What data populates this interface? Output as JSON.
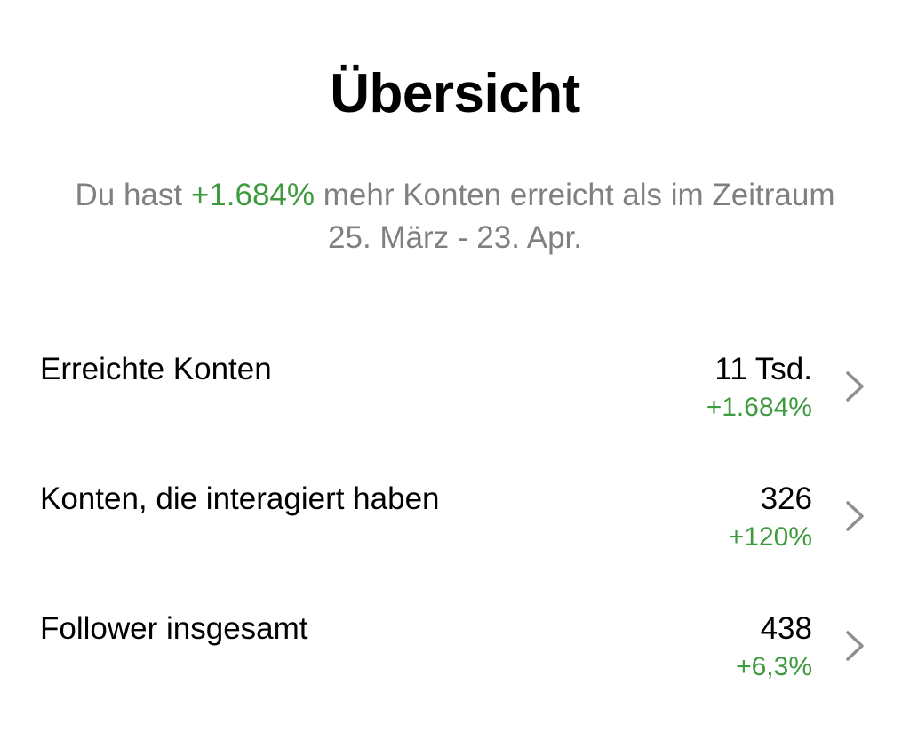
{
  "header": {
    "title": "Übersicht"
  },
  "summary": {
    "prefix": "Du hast ",
    "highlight": "+1.684%",
    "suffix": " mehr Konten erreicht als im Zeitraum 25. März - 23. Apr."
  },
  "metrics": [
    {
      "label": "Erreichte Konten",
      "value": "11 Tsd.",
      "change": "+1.684%",
      "icon": "chevron-right-icon"
    },
    {
      "label": "Konten, die interagiert haben",
      "value": "326",
      "change": "+120%",
      "icon": "chevron-right-icon"
    },
    {
      "label": "Follower insgesamt",
      "value": "438",
      "change": "+6,3%",
      "icon": "chevron-right-icon"
    }
  ],
  "colors": {
    "positive": "#3e9a3e",
    "secondary_text": "#808080",
    "chevron": "#8e8e8e"
  }
}
